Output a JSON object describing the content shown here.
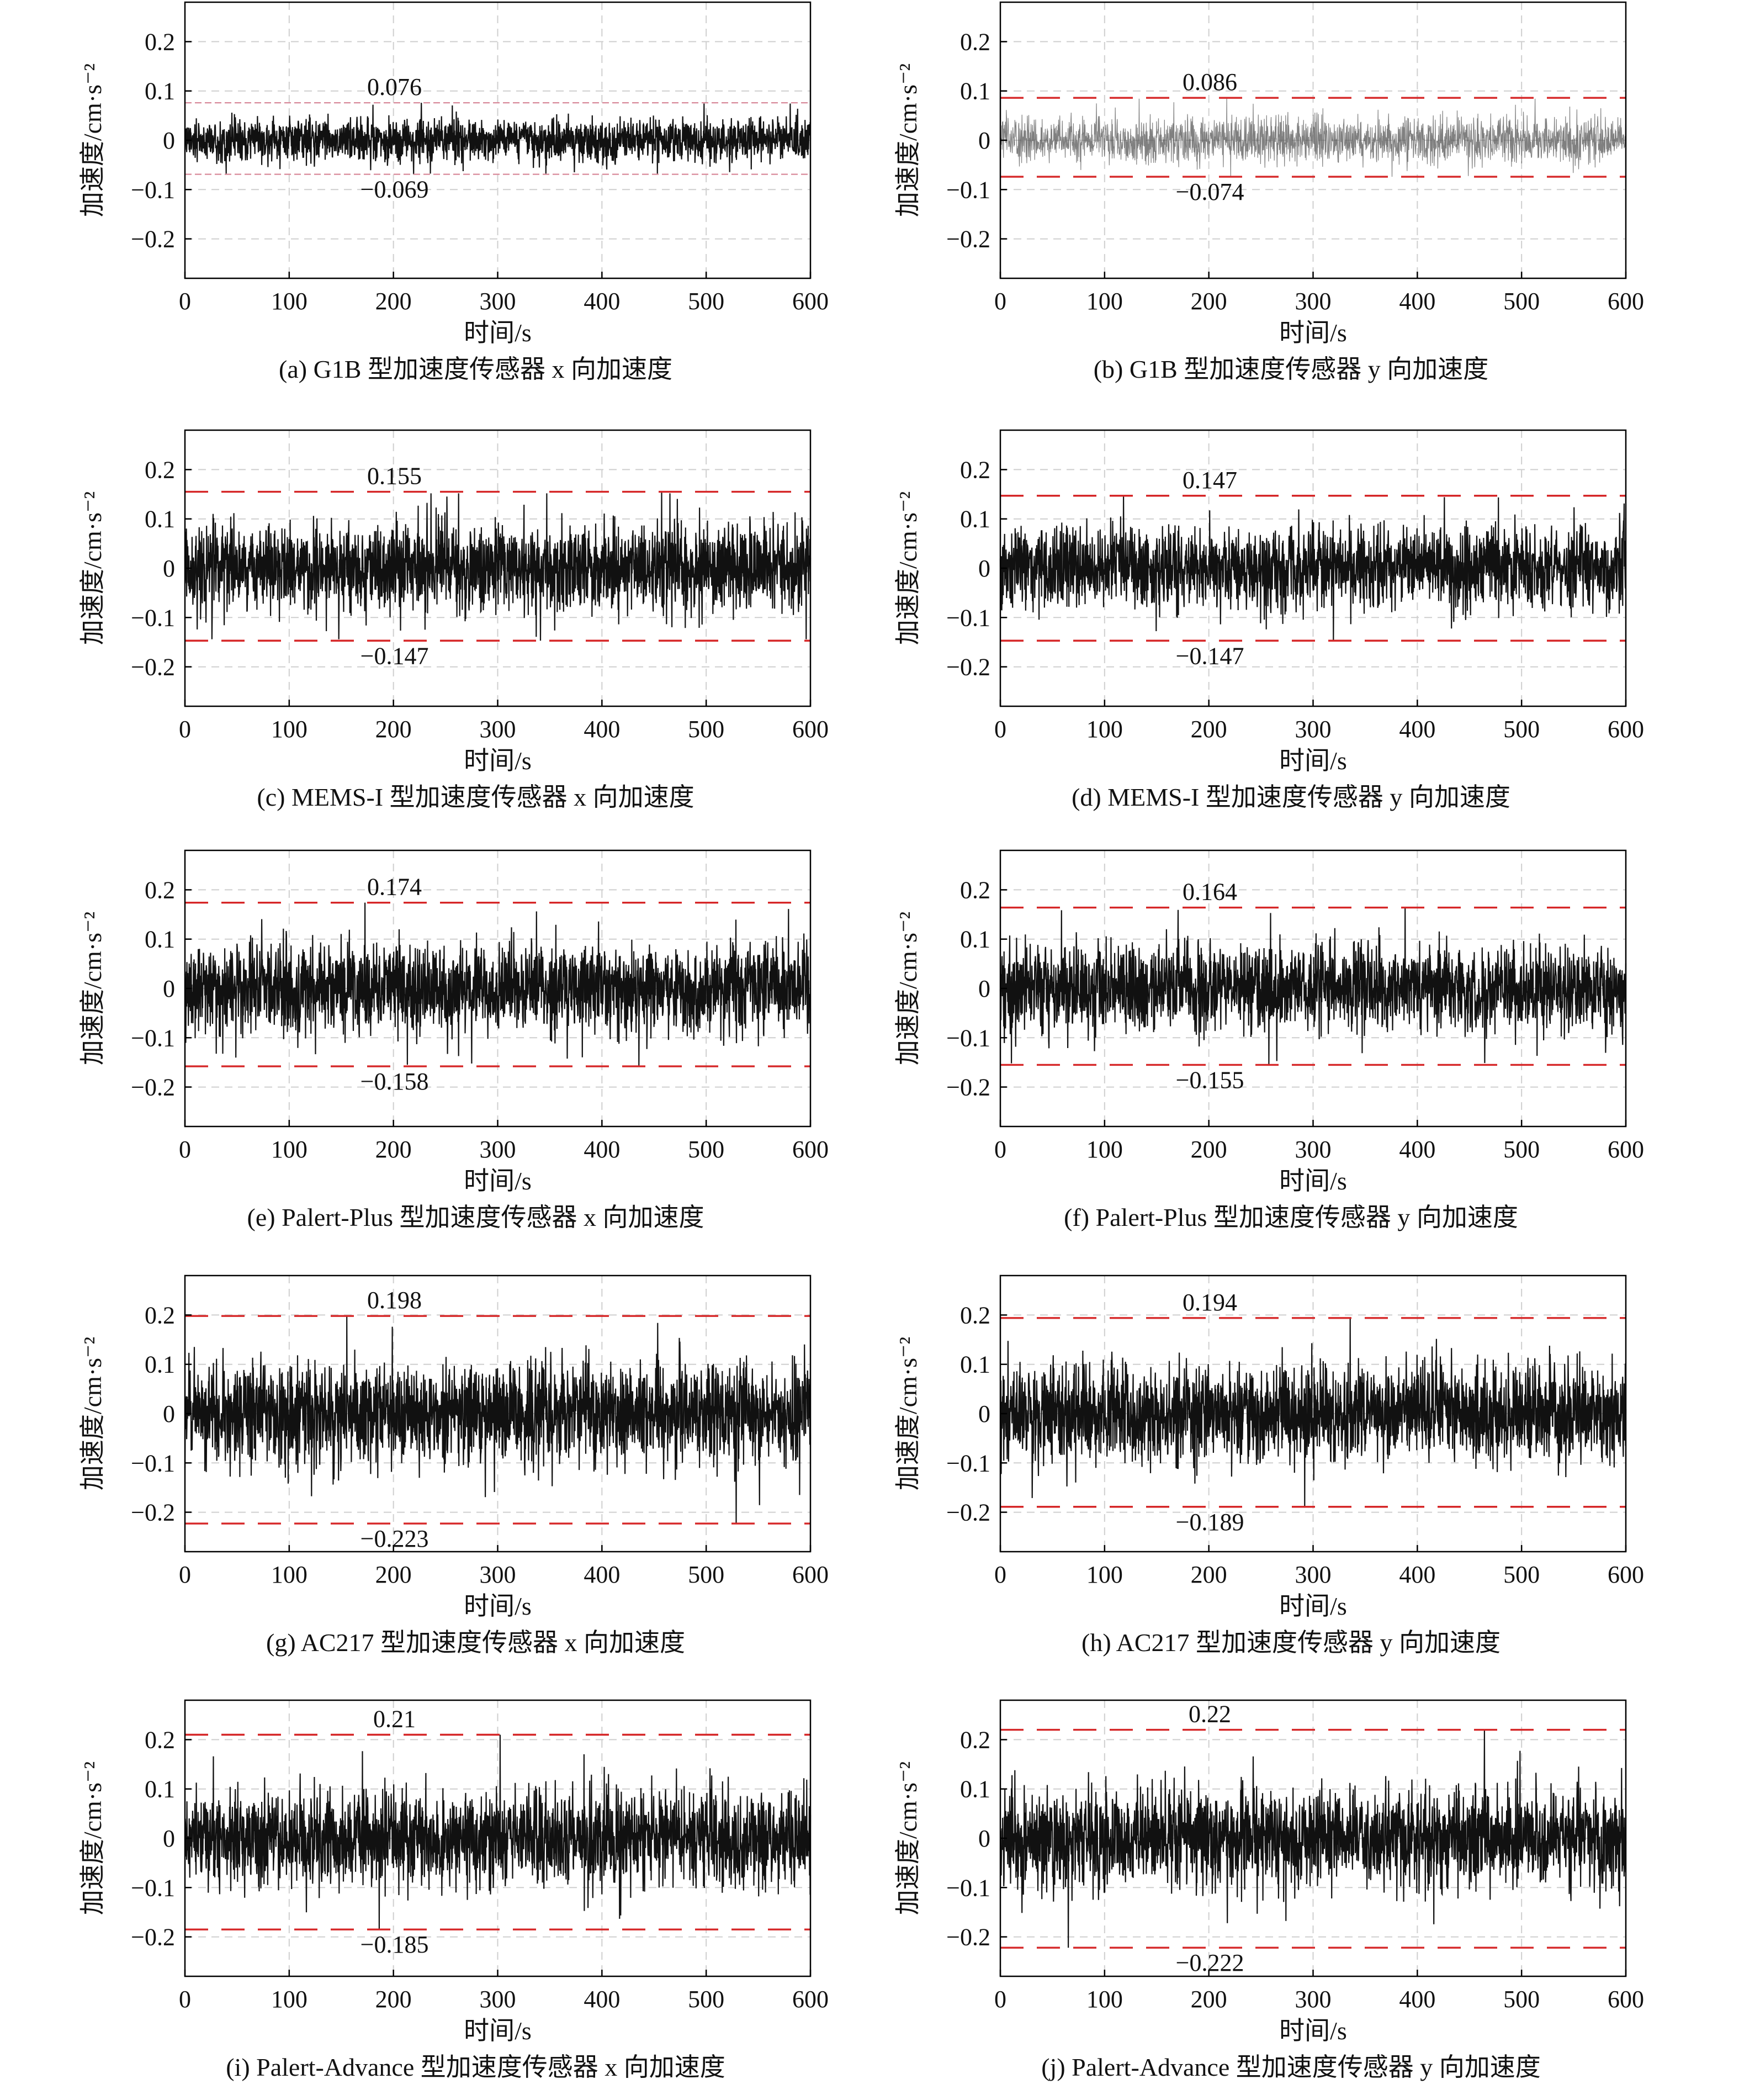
{
  "figure": {
    "subplot_count": 10,
    "x_axis_label": "时间/s",
    "y_axis_label": "加速度/cm·s⁻²",
    "threshold_line_color": "#d62728",
    "signal_color": "#111111",
    "grid": true
  },
  "chart_data": [
    {
      "type": "line",
      "caption": "(a) G1B 型加速度传感器 x 向加速度",
      "xlabel": "时间/s",
      "ylabel": "加速度/cm·s⁻²",
      "xlim": [
        0,
        600
      ],
      "ylim": [
        -0.28,
        0.28
      ],
      "x_ticks": [
        "0",
        "100",
        "200",
        "300",
        "400",
        "500",
        "600"
      ],
      "y_ticks": [
        "0.2",
        "0.1",
        "0",
        "−0.1",
        "−0.2"
      ],
      "series": [
        {
          "amplitude_rms": 0.022,
          "style": "dense"
        }
      ],
      "threshold_lines": [
        {
          "value": 0.076,
          "label": "0.076"
        },
        {
          "value": -0.069,
          "label": "−0.069"
        }
      ],
      "threshold_style": "thin-pink"
    },
    {
      "type": "line",
      "caption": "(b) G1B 型加速度传感器 y 向加速度",
      "xlabel": "时间/s",
      "ylabel": "加速度/cm·s⁻²",
      "xlim": [
        0,
        600
      ],
      "ylim": [
        -0.28,
        0.28
      ],
      "x_ticks": [
        "0",
        "100",
        "200",
        "300",
        "400",
        "500",
        "600"
      ],
      "y_ticks": [
        "0.2",
        "0.1",
        "0",
        "−0.1",
        "−0.2"
      ],
      "series": [
        {
          "amplitude_rms": 0.024,
          "style": "light"
        }
      ],
      "threshold_lines": [
        {
          "value": 0.086,
          "label": "0.086"
        },
        {
          "value": -0.074,
          "label": "−0.074"
        }
      ],
      "threshold_style": "dashed-red"
    },
    {
      "type": "line",
      "caption": "(c) MEMS-I 型加速度传感器 x 向加速度",
      "xlabel": "时间/s",
      "ylabel": "加速度/cm·s⁻²",
      "xlim": [
        0,
        600
      ],
      "ylim": [
        -0.28,
        0.28
      ],
      "x_ticks": [
        "0",
        "100",
        "200",
        "300",
        "400",
        "500",
        "600"
      ],
      "y_ticks": [
        "0.2",
        "0.1",
        "0",
        "−0.1",
        "−0.2"
      ],
      "series": [
        {
          "amplitude_rms": 0.045,
          "style": "dense"
        }
      ],
      "threshold_lines": [
        {
          "value": 0.155,
          "label": "0.155"
        },
        {
          "value": -0.147,
          "label": "−0.147"
        }
      ],
      "threshold_style": "dashed-red"
    },
    {
      "type": "line",
      "caption": "(d) MEMS-I 型加速度传感器 y 向加速度",
      "xlabel": "时间/s",
      "ylabel": "加速度/cm·s⁻²",
      "xlim": [
        0,
        600
      ],
      "ylim": [
        -0.28,
        0.28
      ],
      "x_ticks": [
        "0",
        "100",
        "200",
        "300",
        "400",
        "500",
        "600"
      ],
      "y_ticks": [
        "0.2",
        "0.1",
        "0",
        "−0.1",
        "−0.2"
      ],
      "series": [
        {
          "amplitude_rms": 0.042,
          "style": "dense"
        }
      ],
      "threshold_lines": [
        {
          "value": 0.147,
          "label": "0.147"
        },
        {
          "value": -0.147,
          "label": "−0.147"
        }
      ],
      "threshold_style": "dashed-red"
    },
    {
      "type": "line",
      "caption": "(e) Palert-Plus 型加速度传感器 x 向加速度",
      "xlabel": "时间/s",
      "ylabel": "加速度/cm·s⁻²",
      "xlim": [
        0,
        600
      ],
      "ylim": [
        -0.28,
        0.28
      ],
      "x_ticks": [
        "0",
        "100",
        "200",
        "300",
        "400",
        "500",
        "600"
      ],
      "y_ticks": [
        "0.2",
        "0.1",
        "0",
        "−0.1",
        "−0.2"
      ],
      "series": [
        {
          "amplitude_rms": 0.046,
          "style": "dense"
        }
      ],
      "threshold_lines": [
        {
          "value": 0.174,
          "label": "0.174"
        },
        {
          "value": -0.158,
          "label": "−0.158"
        }
      ],
      "threshold_style": "dashed-red"
    },
    {
      "type": "line",
      "caption": "(f) Palert-Plus 型加速度传感器 y 向加速度",
      "xlabel": "时间/s",
      "ylabel": "加速度/cm·s⁻²",
      "xlim": [
        0,
        600
      ],
      "ylim": [
        -0.28,
        0.28
      ],
      "x_ticks": [
        "0",
        "100",
        "200",
        "300",
        "400",
        "500",
        "600"
      ],
      "y_ticks": [
        "0.2",
        "0.1",
        "0",
        "−0.1",
        "−0.2"
      ],
      "series": [
        {
          "amplitude_rms": 0.045,
          "style": "dense"
        }
      ],
      "threshold_lines": [
        {
          "value": 0.164,
          "label": "0.164"
        },
        {
          "value": -0.155,
          "label": "−0.155"
        }
      ],
      "threshold_style": "dashed-red"
    },
    {
      "type": "line",
      "caption": "(g) AC217 型加速度传感器 x 向加速度",
      "xlabel": "时间/s",
      "ylabel": "加速度/cm·s⁻²",
      "xlim": [
        0,
        600
      ],
      "ylim": [
        -0.28,
        0.28
      ],
      "x_ticks": [
        "0",
        "100",
        "200",
        "300",
        "400",
        "500",
        "600"
      ],
      "y_ticks": [
        "0.2",
        "0.1",
        "0",
        "−0.1",
        "−0.2"
      ],
      "series": [
        {
          "amplitude_rms": 0.052,
          "style": "dense"
        }
      ],
      "threshold_lines": [
        {
          "value": 0.198,
          "label": "0.198"
        },
        {
          "value": -0.223,
          "label": "−0.223"
        }
      ],
      "threshold_style": "dashed-red"
    },
    {
      "type": "line",
      "caption": "(h) AC217 型加速度传感器 y 向加速度",
      "xlabel": "时间/s",
      "ylabel": "加速度/cm·s⁻²",
      "xlim": [
        0,
        600
      ],
      "ylim": [
        -0.28,
        0.28
      ],
      "x_ticks": [
        "0",
        "100",
        "200",
        "300",
        "400",
        "500",
        "600"
      ],
      "y_ticks": [
        "0.2",
        "0.1",
        "0",
        "−0.1",
        "−0.2"
      ],
      "series": [
        {
          "amplitude_rms": 0.05,
          "style": "dense"
        }
      ],
      "threshold_lines": [
        {
          "value": 0.194,
          "label": "0.194"
        },
        {
          "value": -0.189,
          "label": "−0.189"
        }
      ],
      "threshold_style": "dashed-red"
    },
    {
      "type": "line",
      "caption": "(i) Palert-Advance 型加速度传感器 x 向加速度",
      "xlabel": "时间/s",
      "ylabel": "加速度/cm·s⁻²",
      "xlim": [
        0,
        600
      ],
      "ylim": [
        -0.28,
        0.28
      ],
      "x_ticks": [
        "0",
        "100",
        "200",
        "300",
        "400",
        "500",
        "600"
      ],
      "y_ticks": [
        "0.2",
        "0.1",
        "0",
        "−0.1",
        "−0.2"
      ],
      "series": [
        {
          "amplitude_rms": 0.05,
          "style": "dense"
        }
      ],
      "threshold_lines": [
        {
          "value": 0.21,
          "label": "0.21"
        },
        {
          "value": -0.185,
          "label": "−0.185"
        }
      ],
      "threshold_style": "dashed-red"
    },
    {
      "type": "line",
      "caption": "(j) Palert-Advance 型加速度传感器 y 向加速度",
      "xlabel": "时间/s",
      "ylabel": "加速度/cm·s⁻²",
      "xlim": [
        0,
        600
      ],
      "ylim": [
        -0.28,
        0.28
      ],
      "x_ticks": [
        "0",
        "100",
        "200",
        "300",
        "400",
        "500",
        "600"
      ],
      "y_ticks": [
        "0.2",
        "0.1",
        "0",
        "−0.1",
        "−0.2"
      ],
      "series": [
        {
          "amplitude_rms": 0.05,
          "style": "dense"
        }
      ],
      "threshold_lines": [
        {
          "value": 0.22,
          "label": "0.22"
        },
        {
          "value": -0.222,
          "label": "−0.222"
        }
      ],
      "threshold_style": "dashed-red"
    }
  ]
}
